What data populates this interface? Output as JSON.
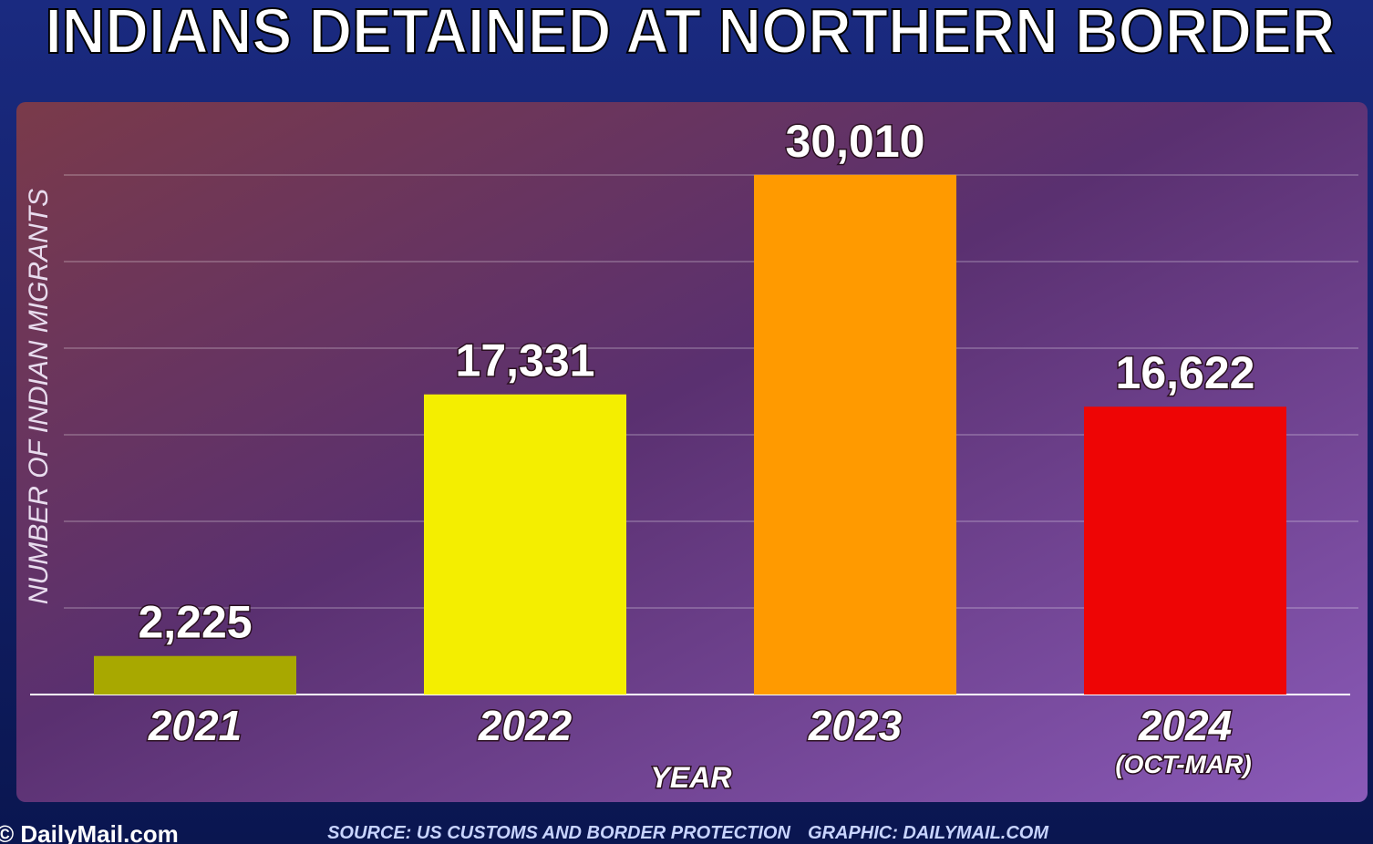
{
  "chart_data": {
    "type": "bar",
    "title": "INDIANS DETAINED AT NORTHERN BORDER",
    "y_label": "NUMBER OF INDIAN MIGRANTS",
    "x_label": "YEAR",
    "categories": [
      "2021",
      "2022",
      "2023",
      "2024"
    ],
    "annotation": "(OCT-MAR)",
    "values": [
      2225,
      17331,
      30010,
      16622
    ],
    "value_labels": [
      "2,225",
      "17,331",
      "30,010",
      "16,622"
    ],
    "colors": [
      "#a8a800",
      "#f4ee00",
      "#ff9a00",
      "#ee0505"
    ],
    "ylim": [
      0,
      34000
    ],
    "yticks": [
      5000,
      10000,
      15000,
      20000,
      25000,
      30000
    ],
    "grid": true,
    "source": "SOURCE: US CUSTOMS AND BORDER PROTECTION",
    "credit": "GRAPHIC: DAILYMAIL.COM",
    "logo": "© DailyMail.com"
  }
}
